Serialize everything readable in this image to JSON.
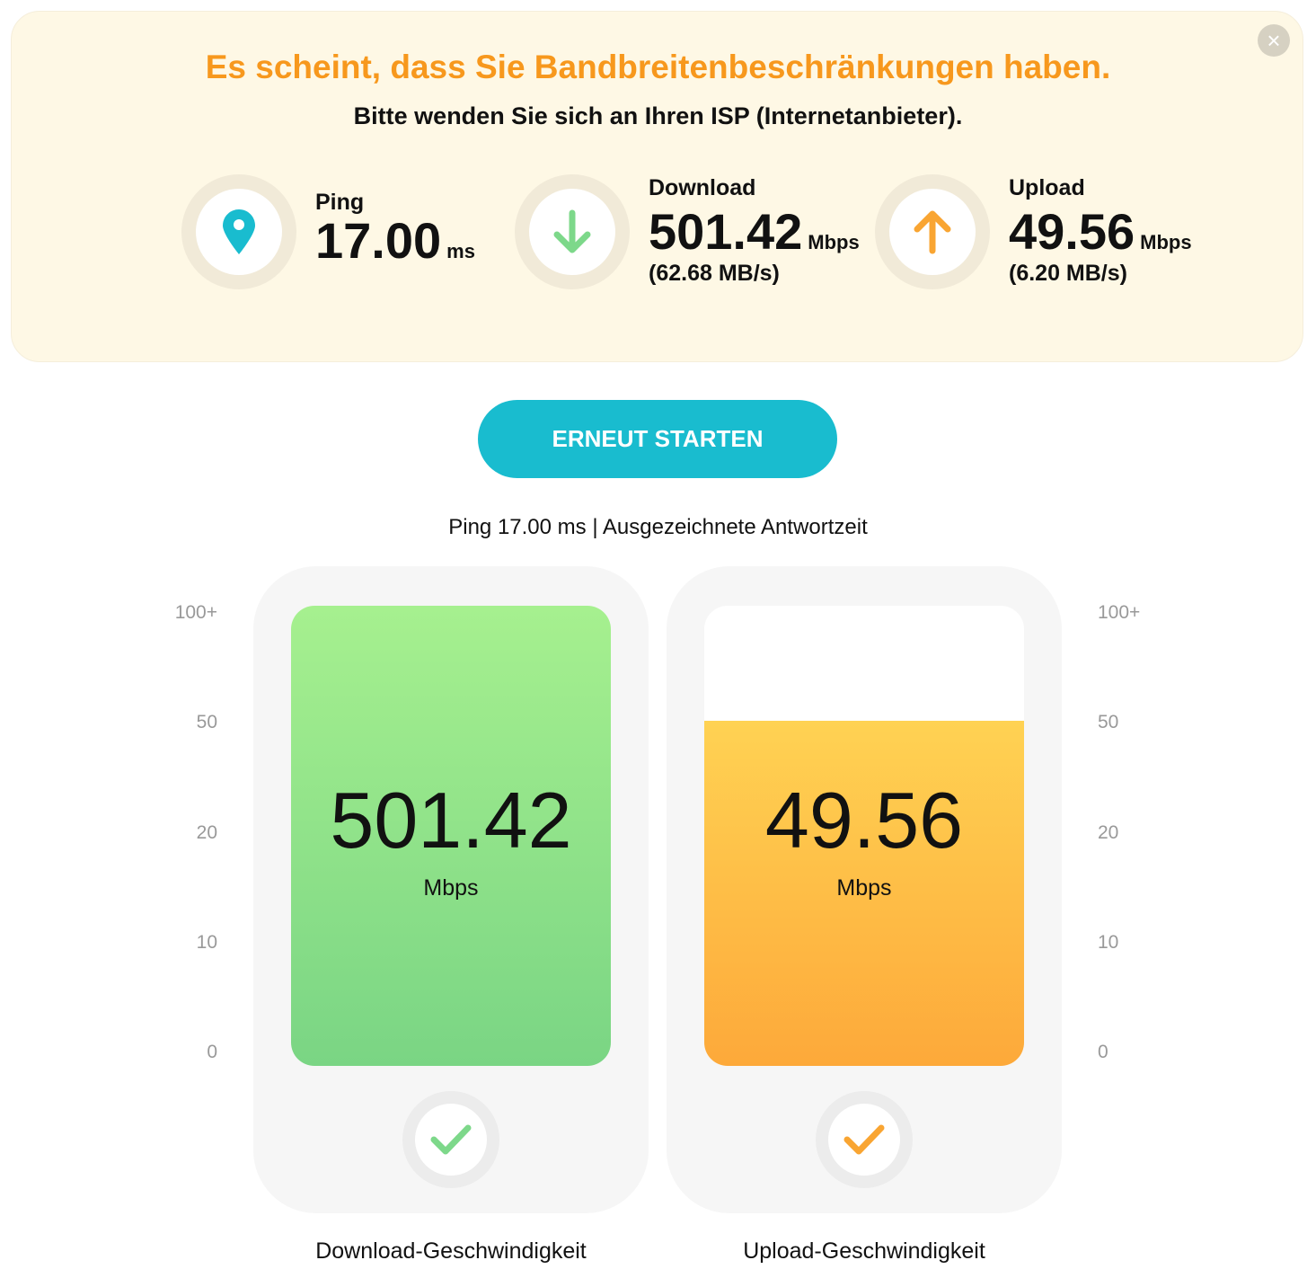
{
  "banner": {
    "title": "Es scheint, dass Sie Bandbreitenbeschränkungen haben.",
    "subtitle": "Bitte wenden Sie sich an Ihren ISP (Internetanbieter).",
    "close_icon": "×",
    "ping": {
      "label": "Ping",
      "value": "17.00",
      "unit": "ms",
      "icon": "location-pin-icon",
      "color": "#19bccf"
    },
    "download": {
      "label": "Download",
      "value": "501.42",
      "unit": "Mbps",
      "sub": "(62.68 MB/s)",
      "icon": "arrow-down-icon",
      "color": "#7dd88a"
    },
    "upload": {
      "label": "Upload",
      "value": "49.56",
      "unit": "Mbps",
      "sub": "(6.20 MB/s)",
      "icon": "arrow-up-icon",
      "color": "#f9a532"
    }
  },
  "restart_button": "ERNEUT STARTEN",
  "ping_summary": "Ping 17.00 ms | Ausgezeichnete Antwortzeit",
  "scale_labels": [
    "100+",
    "50",
    "20",
    "10",
    "0"
  ],
  "cards": {
    "download": {
      "value": "501.42",
      "unit": "Mbps",
      "label": "Download-Geschwindigkeit",
      "fill_level": 1.0,
      "icon": "check-icon"
    },
    "upload": {
      "value": "49.56",
      "unit": "Mbps",
      "label": "Upload-Geschwindigkeit",
      "fill_level": 0.75,
      "icon": "check-icon"
    }
  }
}
